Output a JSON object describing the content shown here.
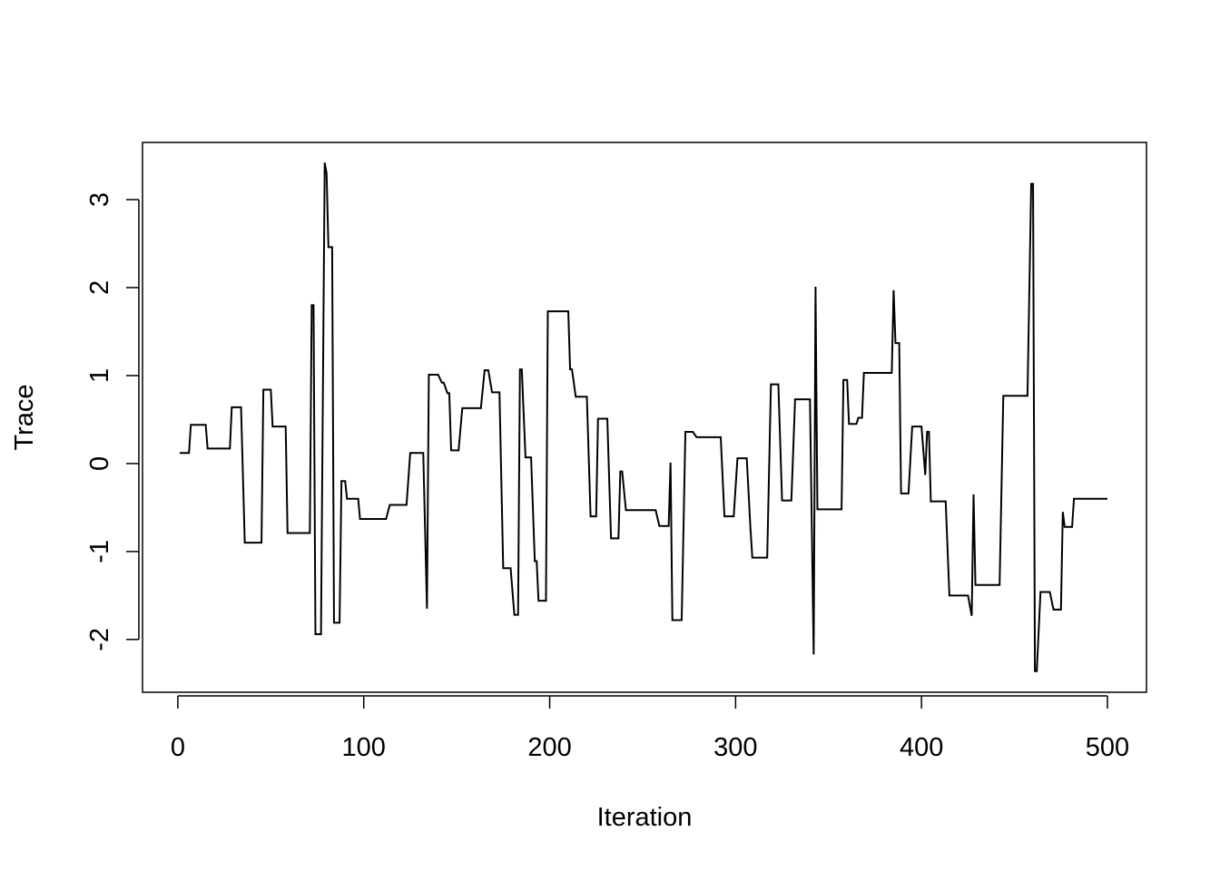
{
  "chart_data": {
    "type": "line",
    "xlabel": "Iteration",
    "ylabel": "Trace",
    "xlim": [
      -19,
      521
    ],
    "ylim": [
      -2.6,
      3.65
    ],
    "xticks": [
      0,
      100,
      200,
      300,
      400,
      500
    ],
    "xtick_labels": [
      "0",
      "100",
      "200",
      "300",
      "400",
      "500"
    ],
    "yticks": [
      -2,
      -1,
      0,
      1,
      2,
      3
    ],
    "ytick_labels": [
      "-2",
      "-1",
      "0",
      "1",
      "2",
      "3"
    ],
    "grid": false,
    "legend": "none",
    "series": [
      {
        "color": "#000000",
        "points": [
          [
            1,
            0.12
          ],
          [
            6,
            0.12
          ],
          [
            7,
            0.44
          ],
          [
            15,
            0.44
          ],
          [
            16,
            0.17
          ],
          [
            28,
            0.17
          ],
          [
            29,
            0.64
          ],
          [
            34,
            0.64
          ],
          [
            36,
            -0.9
          ],
          [
            45,
            -0.9
          ],
          [
            46,
            0.84
          ],
          [
            50,
            0.84
          ],
          [
            51,
            0.42
          ],
          [
            58,
            0.42
          ],
          [
            59,
            -0.79
          ],
          [
            71,
            -0.79
          ],
          [
            72,
            1.8
          ],
          [
            73,
            1.8
          ],
          [
            74,
            -1.94
          ],
          [
            77,
            -1.94
          ],
          [
            79,
            3.42
          ],
          [
            80,
            3.3
          ],
          [
            81,
            2.46
          ],
          [
            83,
            2.46
          ],
          [
            84,
            -1.81
          ],
          [
            87,
            -1.81
          ],
          [
            88,
            -0.2
          ],
          [
            90,
            -0.2
          ],
          [
            91,
            -0.4
          ],
          [
            97,
            -0.4
          ],
          [
            98,
            -0.63
          ],
          [
            112,
            -0.63
          ],
          [
            114,
            -0.47
          ],
          [
            123,
            -0.47
          ],
          [
            125,
            0.12
          ],
          [
            132,
            0.12
          ],
          [
            134,
            -1.65
          ],
          [
            135,
            1.01
          ],
          [
            140,
            1.01
          ],
          [
            142,
            0.92
          ],
          [
            143,
            0.92
          ],
          [
            145,
            0.8
          ],
          [
            146,
            0.8
          ],
          [
            147,
            0.15
          ],
          [
            151,
            0.15
          ],
          [
            153,
            0.63
          ],
          [
            163,
            0.63
          ],
          [
            165,
            1.06
          ],
          [
            167,
            1.06
          ],
          [
            169,
            0.81
          ],
          [
            173,
            0.81
          ],
          [
            175,
            -1.19
          ],
          [
            179,
            -1.19
          ],
          [
            181,
            -1.72
          ],
          [
            183,
            -1.72
          ],
          [
            184,
            1.07
          ],
          [
            185,
            1.07
          ],
          [
            187,
            0.07
          ],
          [
            190,
            0.07
          ],
          [
            192,
            -1.11
          ],
          [
            193,
            -1.11
          ],
          [
            194,
            -1.56
          ],
          [
            198,
            -1.56
          ],
          [
            199,
            1.73
          ],
          [
            210,
            1.73
          ],
          [
            211,
            1.07
          ],
          [
            212,
            1.07
          ],
          [
            214,
            0.76
          ],
          [
            220,
            0.76
          ],
          [
            222,
            -0.6
          ],
          [
            225,
            -0.6
          ],
          [
            226,
            0.51
          ],
          [
            231,
            0.51
          ],
          [
            233,
            -0.85
          ],
          [
            237,
            -0.85
          ],
          [
            238,
            -0.09
          ],
          [
            239,
            -0.09
          ],
          [
            241,
            -0.53
          ],
          [
            257,
            -0.53
          ],
          [
            259,
            -0.71
          ],
          [
            264,
            -0.71
          ],
          [
            265,
            0.01
          ],
          [
            266,
            -1.78
          ],
          [
            271,
            -1.78
          ],
          [
            273,
            0.36
          ],
          [
            277,
            0.36
          ],
          [
            279,
            0.3
          ],
          [
            292,
            0.3
          ],
          [
            294,
            -0.6
          ],
          [
            299,
            -0.6
          ],
          [
            301,
            0.06
          ],
          [
            306,
            0.06
          ],
          [
            308,
            -0.74
          ],
          [
            309,
            -1.07
          ],
          [
            317,
            -1.07
          ],
          [
            319,
            0.9
          ],
          [
            323,
            0.9
          ],
          [
            325,
            -0.42
          ],
          [
            330,
            -0.42
          ],
          [
            332,
            0.73
          ],
          [
            340,
            0.73
          ],
          [
            342,
            -2.17
          ],
          [
            343,
            2.01
          ],
          [
            344,
            -0.52
          ],
          [
            357,
            -0.52
          ],
          [
            358,
            0.95
          ],
          [
            360,
            0.95
          ],
          [
            361,
            0.45
          ],
          [
            365,
            0.45
          ],
          [
            366,
            0.52
          ],
          [
            368,
            0.52
          ],
          [
            369,
            1.03
          ],
          [
            384,
            1.03
          ],
          [
            385,
            1.97
          ],
          [
            386,
            1.37
          ],
          [
            388,
            1.37
          ],
          [
            389,
            -0.34
          ],
          [
            393,
            -0.34
          ],
          [
            395,
            0.42
          ],
          [
            400,
            0.42
          ],
          [
            402,
            -0.13
          ],
          [
            403,
            0.36
          ],
          [
            404,
            0.36
          ],
          [
            405,
            -0.43
          ],
          [
            413,
            -0.43
          ],
          [
            415,
            -1.5
          ],
          [
            425,
            -1.5
          ],
          [
            427,
            -1.73
          ],
          [
            428,
            -0.35
          ],
          [
            429,
            -1.38
          ],
          [
            442,
            -1.38
          ],
          [
            444,
            0.77
          ],
          [
            457,
            0.77
          ],
          [
            459,
            3.18
          ],
          [
            460,
            3.18
          ],
          [
            461,
            -2.36
          ],
          [
            462,
            -2.36
          ],
          [
            464,
            -1.46
          ],
          [
            469,
            -1.46
          ],
          [
            471,
            -1.66
          ],
          [
            475,
            -1.66
          ],
          [
            476,
            -0.55
          ],
          [
            477,
            -0.72
          ],
          [
            481,
            -0.72
          ],
          [
            482,
            -0.4
          ],
          [
            500,
            -0.4
          ]
        ]
      }
    ]
  }
}
